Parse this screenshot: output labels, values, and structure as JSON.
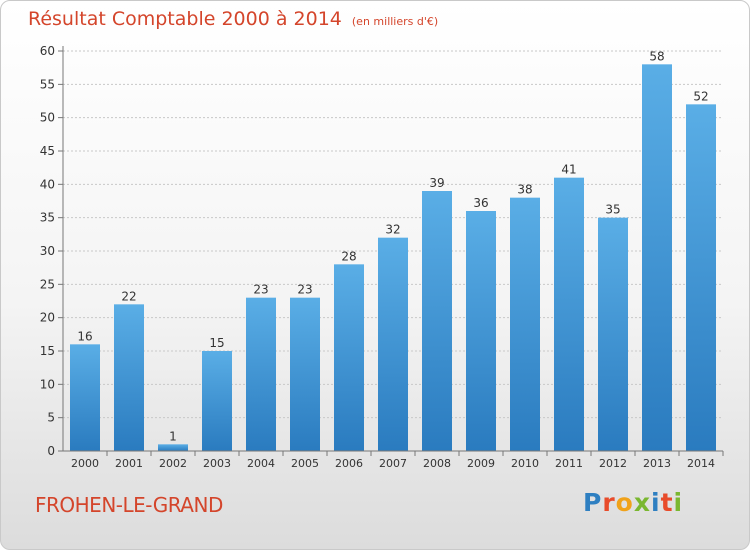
{
  "header": {
    "title": "Résultat Comptable 2000 à 2014",
    "subtitle": "(en milliers d'€)"
  },
  "footer": {
    "place": "FROHEN-LE-GRAND",
    "logo": "Proxiti",
    "logo_colors": [
      "#2e7fc1",
      "#e84b2a",
      "#f0a21a",
      "#7ab730",
      "#2e7fc1",
      "#e84b2a",
      "#7ab730"
    ]
  },
  "colors": {
    "bar_light": "#5aaee6",
    "bar_dark": "#2a7bbf",
    "axis": "#777777",
    "grid": "#c8c8c8",
    "title": "#d4452b"
  },
  "chart_data": {
    "type": "bar",
    "categories": [
      "2000",
      "2001",
      "2002",
      "2003",
      "2004",
      "2005",
      "2006",
      "2007",
      "2008",
      "2009",
      "2010",
      "2011",
      "2012",
      "2013",
      "2014"
    ],
    "values": [
      16,
      22,
      1,
      15,
      23,
      23,
      28,
      32,
      39,
      36,
      38,
      41,
      35,
      58,
      52
    ],
    "title": "Résultat Comptable 2000 à 2014",
    "subtitle": "(en milliers d'€)",
    "ylim": [
      0,
      60
    ],
    "yticks": [
      0,
      5,
      10,
      15,
      20,
      25,
      30,
      35,
      40,
      45,
      50,
      55,
      60
    ],
    "grid": true,
    "data_labels": true
  }
}
